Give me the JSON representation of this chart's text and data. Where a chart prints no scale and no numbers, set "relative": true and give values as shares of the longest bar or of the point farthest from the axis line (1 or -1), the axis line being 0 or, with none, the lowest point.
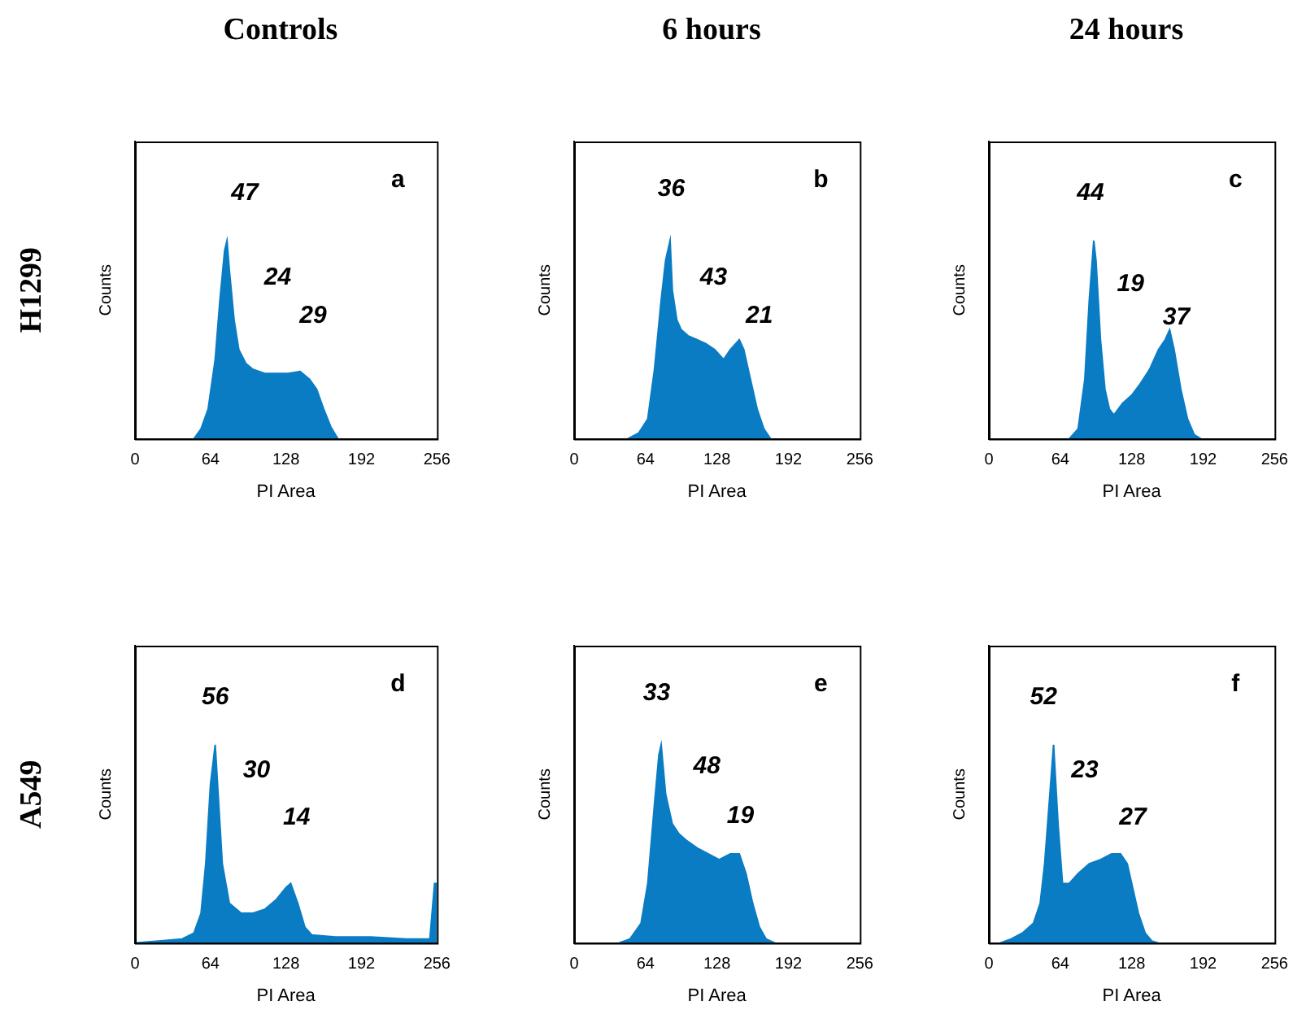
{
  "chart_data": [
    {
      "type": "area",
      "title": "Controls",
      "xlabel": "PI Area",
      "ylabel": "Counts",
      "relative": true,
      "color": "#0a7cc4",
      "xlim": [
        0,
        256
      ],
      "xticks": [
        0,
        64,
        128,
        192,
        256
      ],
      "x": [
        50,
        56,
        62,
        68,
        72,
        76,
        78,
        80,
        84,
        88,
        94,
        100,
        110,
        120,
        130,
        140,
        148,
        154,
        160,
        166,
        172
      ],
      "values": [
        0,
        0.05,
        0.15,
        0.4,
        0.7,
        0.95,
        1,
        0.85,
        0.6,
        0.45,
        0.38,
        0.35,
        0.33,
        0.33,
        0.33,
        0.34,
        0.3,
        0.25,
        0.15,
        0.06,
        0
      ],
      "annotations": [
        "H1299",
        "a",
        "47",
        "24",
        "29"
      ]
    },
    {
      "type": "area",
      "title": "6 hours",
      "xlabel": "PI Area",
      "ylabel": "Counts",
      "relative": true,
      "color": "#0a7cc4",
      "xlim": [
        0,
        256
      ],
      "xticks": [
        0,
        64,
        128,
        192,
        256
      ],
      "x": [
        48,
        58,
        66,
        72,
        78,
        82,
        86,
        88,
        92,
        96,
        102,
        110,
        118,
        126,
        134,
        140,
        148,
        152,
        158,
        164,
        170,
        176
      ],
      "values": [
        0,
        0.03,
        0.1,
        0.35,
        0.7,
        0.9,
        1,
        0.75,
        0.6,
        0.55,
        0.52,
        0.5,
        0.48,
        0.45,
        0.4,
        0.45,
        0.5,
        0.45,
        0.3,
        0.15,
        0.05,
        0
      ],
      "annotations": [
        "b",
        "36",
        "43",
        "21"
      ]
    },
    {
      "type": "area",
      "title": "24 hours",
      "xlabel": "PI Area",
      "ylabel": "Counts",
      "relative": true,
      "color": "#0a7cc4",
      "xlim": [
        0,
        256
      ],
      "xticks": [
        0,
        64,
        128,
        192,
        256
      ],
      "x": [
        72,
        80,
        86,
        90,
        94,
        96,
        100,
        104,
        108,
        112,
        120,
        128,
        136,
        144,
        152,
        158,
        162,
        166,
        172,
        178,
        184,
        190
      ],
      "values": [
        0,
        0.05,
        0.3,
        0.7,
        1,
        0.9,
        0.5,
        0.25,
        0.15,
        0.12,
        0.18,
        0.22,
        0.28,
        0.35,
        0.45,
        0.5,
        0.55,
        0.45,
        0.25,
        0.1,
        0.02,
        0
      ],
      "annotations": [
        "c",
        "44",
        "19",
        "37"
      ]
    },
    {
      "type": "area",
      "xlabel": "PI Area",
      "ylabel": "Counts",
      "relative": true,
      "color": "#0a7cc4",
      "xlim": [
        0,
        256
      ],
      "xticks": [
        0,
        64,
        128,
        192,
        256
      ],
      "x": [
        0,
        20,
        40,
        50,
        56,
        60,
        64,
        68,
        70,
        74,
        80,
        90,
        100,
        110,
        120,
        128,
        132,
        138,
        144,
        150,
        170,
        200,
        230,
        250,
        254,
        256
      ],
      "values": [
        0,
        0.01,
        0.02,
        0.05,
        0.15,
        0.4,
        0.8,
        1,
        0.8,
        0.4,
        0.2,
        0.15,
        0.15,
        0.17,
        0.22,
        0.28,
        0.3,
        0.2,
        0.08,
        0.04,
        0.03,
        0.03,
        0.02,
        0.02,
        0.3,
        0.3
      ],
      "annotations": [
        "A549",
        "d",
        "56",
        "30",
        "14"
      ]
    },
    {
      "type": "area",
      "xlabel": "PI Area",
      "ylabel": "Counts",
      "relative": true,
      "color": "#0a7cc4",
      "xlim": [
        0,
        256
      ],
      "xticks": [
        0,
        64,
        128,
        192,
        256
      ],
      "x": [
        40,
        50,
        60,
        66,
        72,
        76,
        78,
        82,
        88,
        94,
        100,
        110,
        120,
        130,
        140,
        148,
        154,
        160,
        166,
        172,
        180
      ],
      "values": [
        0,
        0.02,
        0.1,
        0.3,
        0.7,
        0.95,
        1,
        0.75,
        0.6,
        0.55,
        0.52,
        0.48,
        0.45,
        0.42,
        0.45,
        0.45,
        0.35,
        0.2,
        0.08,
        0.02,
        0
      ],
      "annotations": [
        "e",
        "33",
        "48",
        "19"
      ]
    },
    {
      "type": "area",
      "xlabel": "PI Area",
      "ylabel": "Counts",
      "relative": true,
      "color": "#0a7cc4",
      "xlim": [
        0,
        256
      ],
      "xticks": [
        0,
        64,
        128,
        192,
        256
      ],
      "x": [
        10,
        20,
        30,
        40,
        46,
        50,
        54,
        58,
        62,
        66,
        72,
        80,
        90,
        100,
        110,
        118,
        124,
        128,
        134,
        140,
        146,
        152
      ],
      "values": [
        0,
        0.02,
        0.05,
        0.1,
        0.2,
        0.4,
        0.7,
        1,
        0.6,
        0.3,
        0.3,
        0.35,
        0.4,
        0.42,
        0.45,
        0.45,
        0.4,
        0.3,
        0.15,
        0.05,
        0.01,
        0
      ],
      "annotations": [
        "f",
        "52",
        "23",
        "27"
      ]
    }
  ]
}
